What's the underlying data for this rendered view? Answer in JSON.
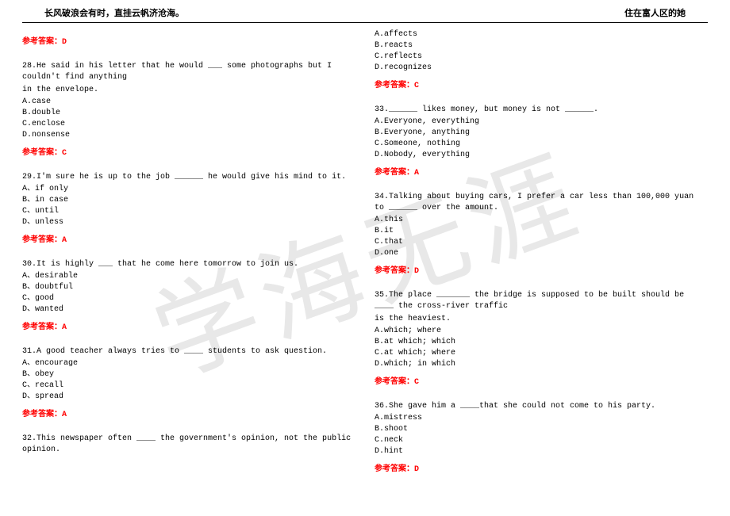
{
  "header": {
    "left": "长风破浪会有时，直挂云帆济沧海。",
    "right": "住在富人区的她"
  },
  "watermark": "学海无涯",
  "answer_label_prefix": "参考答案：",
  "left_col": {
    "top_answer": "D",
    "q28": {
      "text1": "28.He said in his letter that he would ___ some photographs but I couldn't find anything",
      "text2": "in the envelope.",
      "a": "A.case",
      "b": "B.double",
      "c": "C.enclose",
      "d": "D.nonsense",
      "ans": "C"
    },
    "q29": {
      "text": "29.I'm sure he is up to the job ______ he would give his mind to it.",
      "a": "A、if only",
      "b": "B、in case",
      "c": "C、until",
      "d": "D、unless",
      "ans": "A"
    },
    "q30": {
      "text": "30.It is highly ___ that he come here tomorrow to join us.",
      "a": "A、desirable",
      "b": "B、doubtful",
      "c": "C、good",
      "d": "D、wanted",
      "ans": "A"
    },
    "q31": {
      "text": "31.A good teacher always tries to ____ students to ask question.",
      "a": "A、encourage",
      "b": "B、obey",
      "c": "C、recall",
      "d": "D、spread",
      "ans": "A"
    },
    "q32": {
      "text": "32.This newspaper often ____ the government's opinion, not the public opinion."
    }
  },
  "right_col": {
    "q32opts": {
      "a": "A.affects",
      "b": "B.reacts",
      "c": "C.reflects",
      "d": "D.recognizes",
      "ans": "C"
    },
    "q33": {
      "text": "33.______ likes money, but money is not ______.",
      "a": "A.Everyone, everything",
      "b": "B.Everyone, anything",
      "c": "C.Someone, nothing",
      "d": "D.Nobody, everything",
      "ans": "A"
    },
    "q34": {
      "text": "34.Talking about buying cars, I prefer a car less than 100,000 yuan to ______ over the amount.",
      "a": "A.this",
      "b": "B.it",
      "c": "C.that",
      "d": "D.one",
      "ans": "D"
    },
    "q35": {
      "text1": "35.The place _______ the bridge is supposed to be built should be ____ the cross-river traffic",
      "text2": "is the heaviest.",
      "a": "A.which; where",
      "b": "B.at which; which",
      "c": "C.at which; where",
      "d": "D.which; in which",
      "ans": "C"
    },
    "q36": {
      "text": "36.She gave him a ____that she could not come to his party.",
      "a": "A.mistress",
      "b": "B.shoot",
      "c": "C.neck",
      "d": "D.hint",
      "ans": "D"
    }
  }
}
